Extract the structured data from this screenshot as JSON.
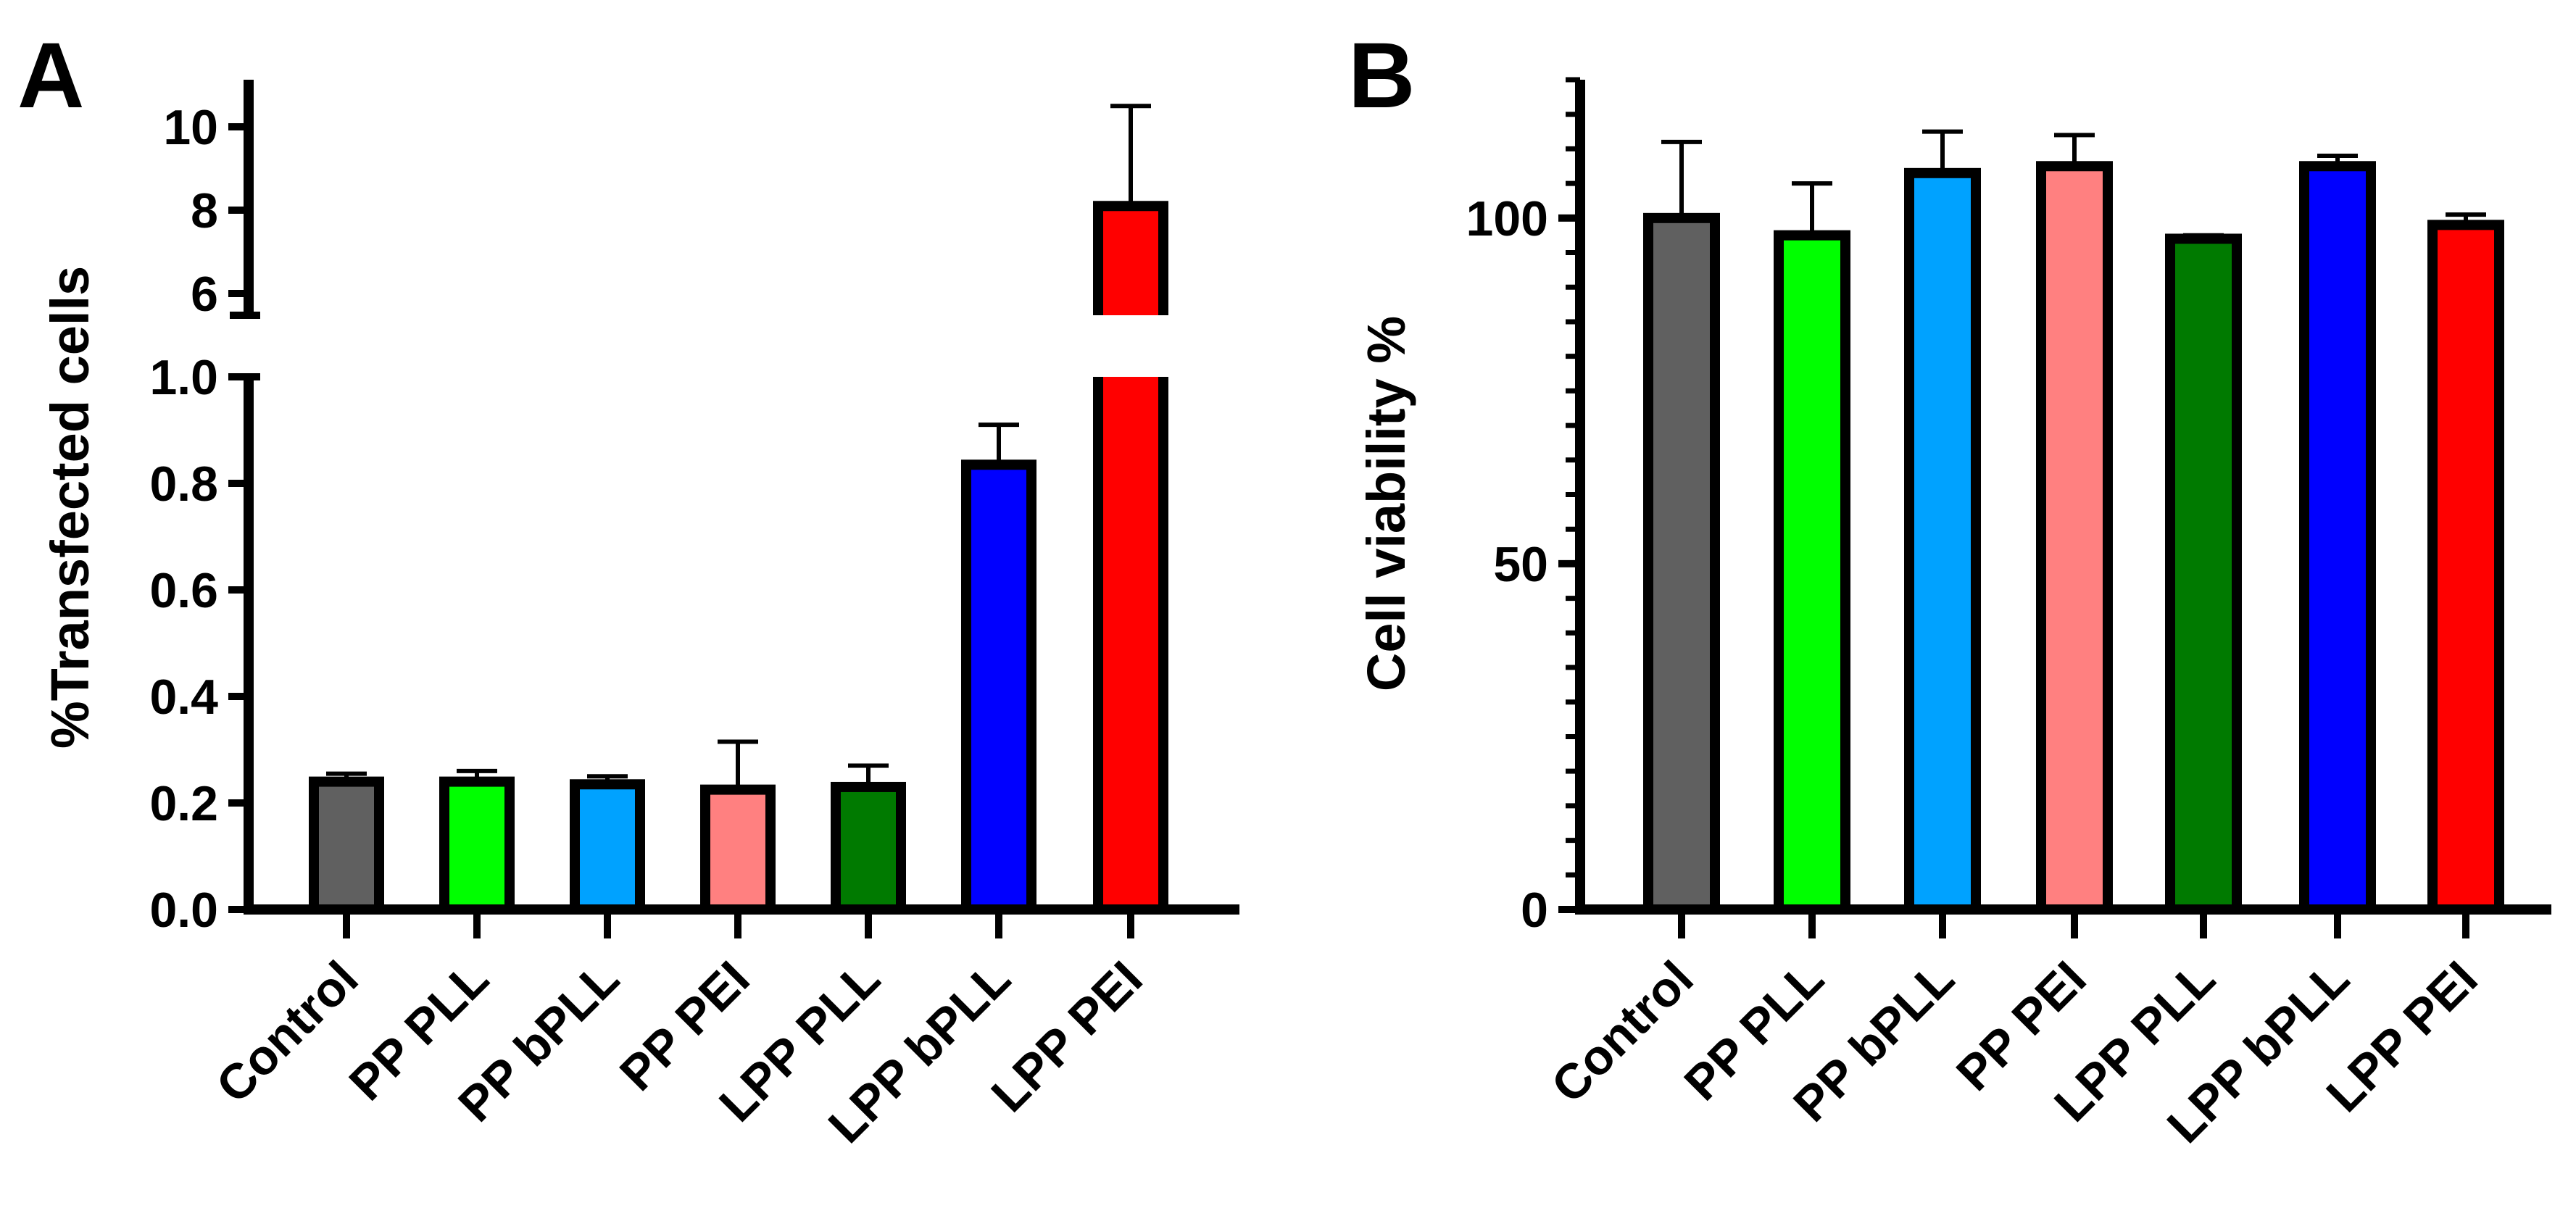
{
  "chart_data": [
    {
      "panel_label": "A",
      "type": "bar",
      "ylabel": "%Transfected cells",
      "xlabel": "",
      "categories": [
        "Control",
        "PP PLL",
        "PP bPLL",
        "PP PEI",
        "LPP PLL",
        "LPP bPLL",
        "LPP PEI"
      ],
      "values": [
        0.24,
        0.24,
        0.235,
        0.225,
        0.23,
        0.835,
        8.1
      ],
      "errors": [
        0.015,
        0.02,
        0.015,
        0.09,
        0.04,
        0.075,
        2.4
      ],
      "colors": [
        "#606060",
        "#00ff00",
        "#00a2ff",
        "#ff8080",
        "#007a00",
        "#0000ff",
        "#ff0000"
      ],
      "ylim": [
        0,
        11
      ],
      "broken_axis": {
        "lower_range": [
          0,
          1.0
        ],
        "upper_range": [
          5.5,
          11
        ],
        "lower_ticks": [
          "0.0",
          "0.2",
          "0.4",
          "0.6",
          "0.8",
          "1.0"
        ],
        "upper_ticks": [
          "6",
          "8",
          "10"
        ]
      },
      "grid": false
    },
    {
      "panel_label": "B",
      "type": "bar",
      "ylabel": "Cell viability %",
      "xlabel": "",
      "categories": [
        "Control",
        "PP PLL",
        "PP bPLL",
        "PP PEI",
        "LPP PLL",
        "LPP bPLL",
        "LPP PEI"
      ],
      "values": [
        100,
        97.5,
        106.5,
        107.5,
        97,
        107.5,
        99
      ],
      "errors": [
        11,
        7.5,
        6,
        4.5,
        0.5,
        1.5,
        1.5
      ],
      "colors": [
        "#606060",
        "#00ff00",
        "#00a2ff",
        "#ff8080",
        "#007a00",
        "#0000ff",
        "#ff0000"
      ],
      "ylim": [
        0,
        120
      ],
      "yticks": [
        "0",
        "50",
        "100"
      ],
      "grid": false
    }
  ]
}
